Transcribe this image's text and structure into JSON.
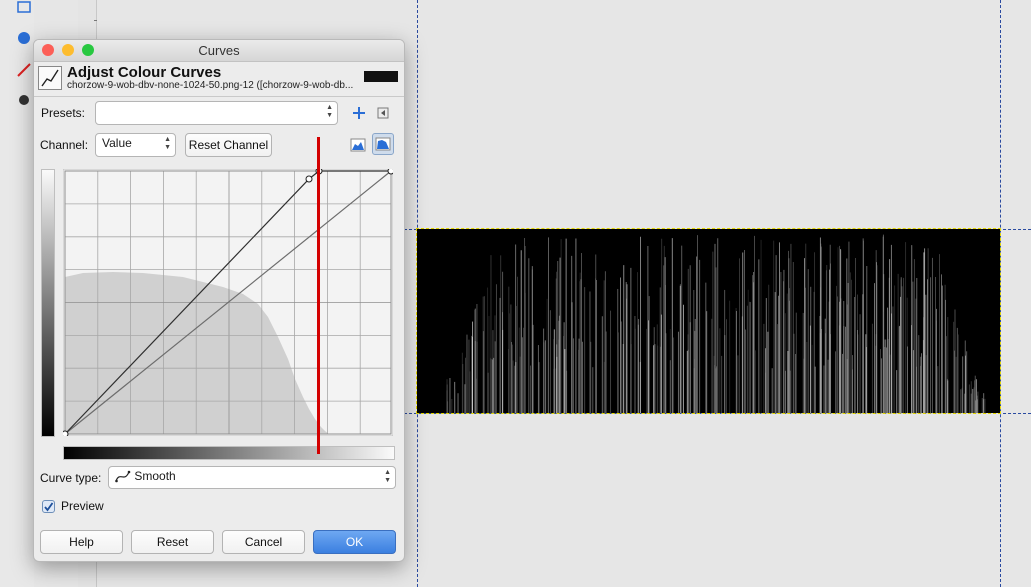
{
  "dialog": {
    "window_title": "Curves",
    "header_title": "Adjust Colour Curves",
    "header_subtitle": "chorzow-9-wob-dbv-none-1024-50.png-12 ([chorzow-9-wob-db...",
    "presets_label": "Presets:",
    "presets_value": "",
    "channel_label": "Channel:",
    "channel_value": "Value",
    "reset_channel_label": "Reset Channel",
    "curve_type_label": "Curve type:",
    "curve_type_value": "Smooth",
    "preview_label": "Preview",
    "preview_checked": true,
    "buttons": {
      "help": "Help",
      "reset": "Reset",
      "cancel": "Cancel",
      "ok": "OK"
    }
  },
  "icons": {
    "add_preset": "plus-icon",
    "preset_menu": "menu-arrow-icon",
    "linear_histogram": "linear-histogram-icon",
    "log_histogram": "logarithmic-histogram-icon",
    "curve_type": "smooth-curve-icon"
  },
  "colors": {
    "accent": "#3b7fe0",
    "red_marker": "#d30000",
    "close": "#fc5f57",
    "minimize": "#fdbc2e",
    "zoom": "#28c840"
  }
}
